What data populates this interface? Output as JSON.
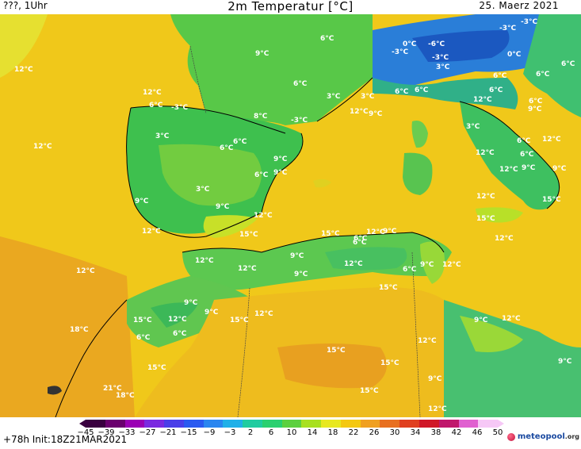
{
  "header": {
    "run_label": "???, 1Uhr",
    "title": "2m Temperatur [°C]",
    "date": "25. Maerz 2021"
  },
  "footer": {
    "init_text": "+78h  Init:18Z21MAR2021",
    "brand_name": "meteopool",
    "brand_tld": ".org"
  },
  "colorbar": {
    "tick_labels": [
      "−45",
      "−39",
      "−33",
      "−27",
      "−21",
      "−15",
      "−9",
      "−3",
      "2",
      "6",
      "10",
      "14",
      "18",
      "22",
      "26",
      "30",
      "34",
      "38",
      "42",
      "46",
      "50"
    ],
    "colors": [
      "#3a0040",
      "#6a006e",
      "#9a00b4",
      "#7a2ae0",
      "#4a3ee8",
      "#2a5af0",
      "#2a86f0",
      "#20b0e8",
      "#20cca0",
      "#2ad070",
      "#5cd040",
      "#a8e020",
      "#e8e820",
      "#f4c810",
      "#f0a020",
      "#e87020",
      "#e04020",
      "#d01828",
      "#c0186c",
      "#e060d0",
      "#f6c8f6"
    ]
  },
  "map_labels": [
    "12°C",
    "6°C",
    "0°C",
    "-6°C",
    "-3°C",
    "-3°C",
    "-3°C",
    "-3°C",
    "0°C",
    "3°C",
    "6°C",
    "6°C",
    "6°C",
    "6°C",
    "9°C",
    "6°C",
    "3°C",
    "3°C",
    "6°C",
    "6°C",
    "3°C",
    "12°C",
    "6°C",
    "9°C",
    "8°C",
    "-3°C",
    "12°C",
    "9°C",
    "3°C",
    "6°C",
    "12°C",
    "-3°C",
    "6°C",
    "12°C",
    "9°C",
    "9°C",
    "6°C",
    "6°C",
    "9°C",
    "3°C",
    "9°C",
    "12°C",
    "12°C",
    "9°C",
    "6°C",
    "9°C",
    "12°C",
    "12°C",
    "6°C",
    "15°C",
    "9°C",
    "12°C",
    "6°C",
    "12°C",
    "15°C",
    "6°C",
    "12°C",
    "9°C",
    "9°C",
    "12°C",
    "12°C",
    "12°C",
    "9°C",
    "6°C",
    "15°C",
    "18°C",
    "6°C",
    "12°C",
    "9°C",
    "15°C",
    "15°C",
    "12°C",
    "9°C",
    "15°C",
    "12°C",
    "9°C",
    "12°C",
    "6°C",
    "15°C",
    "15°C",
    "15°C",
    "12°C",
    "9°C",
    "18°C",
    "21°C",
    "12°C",
    "15°C",
    "9°C",
    "12°C",
    "15°C",
    "12°C"
  ]
}
